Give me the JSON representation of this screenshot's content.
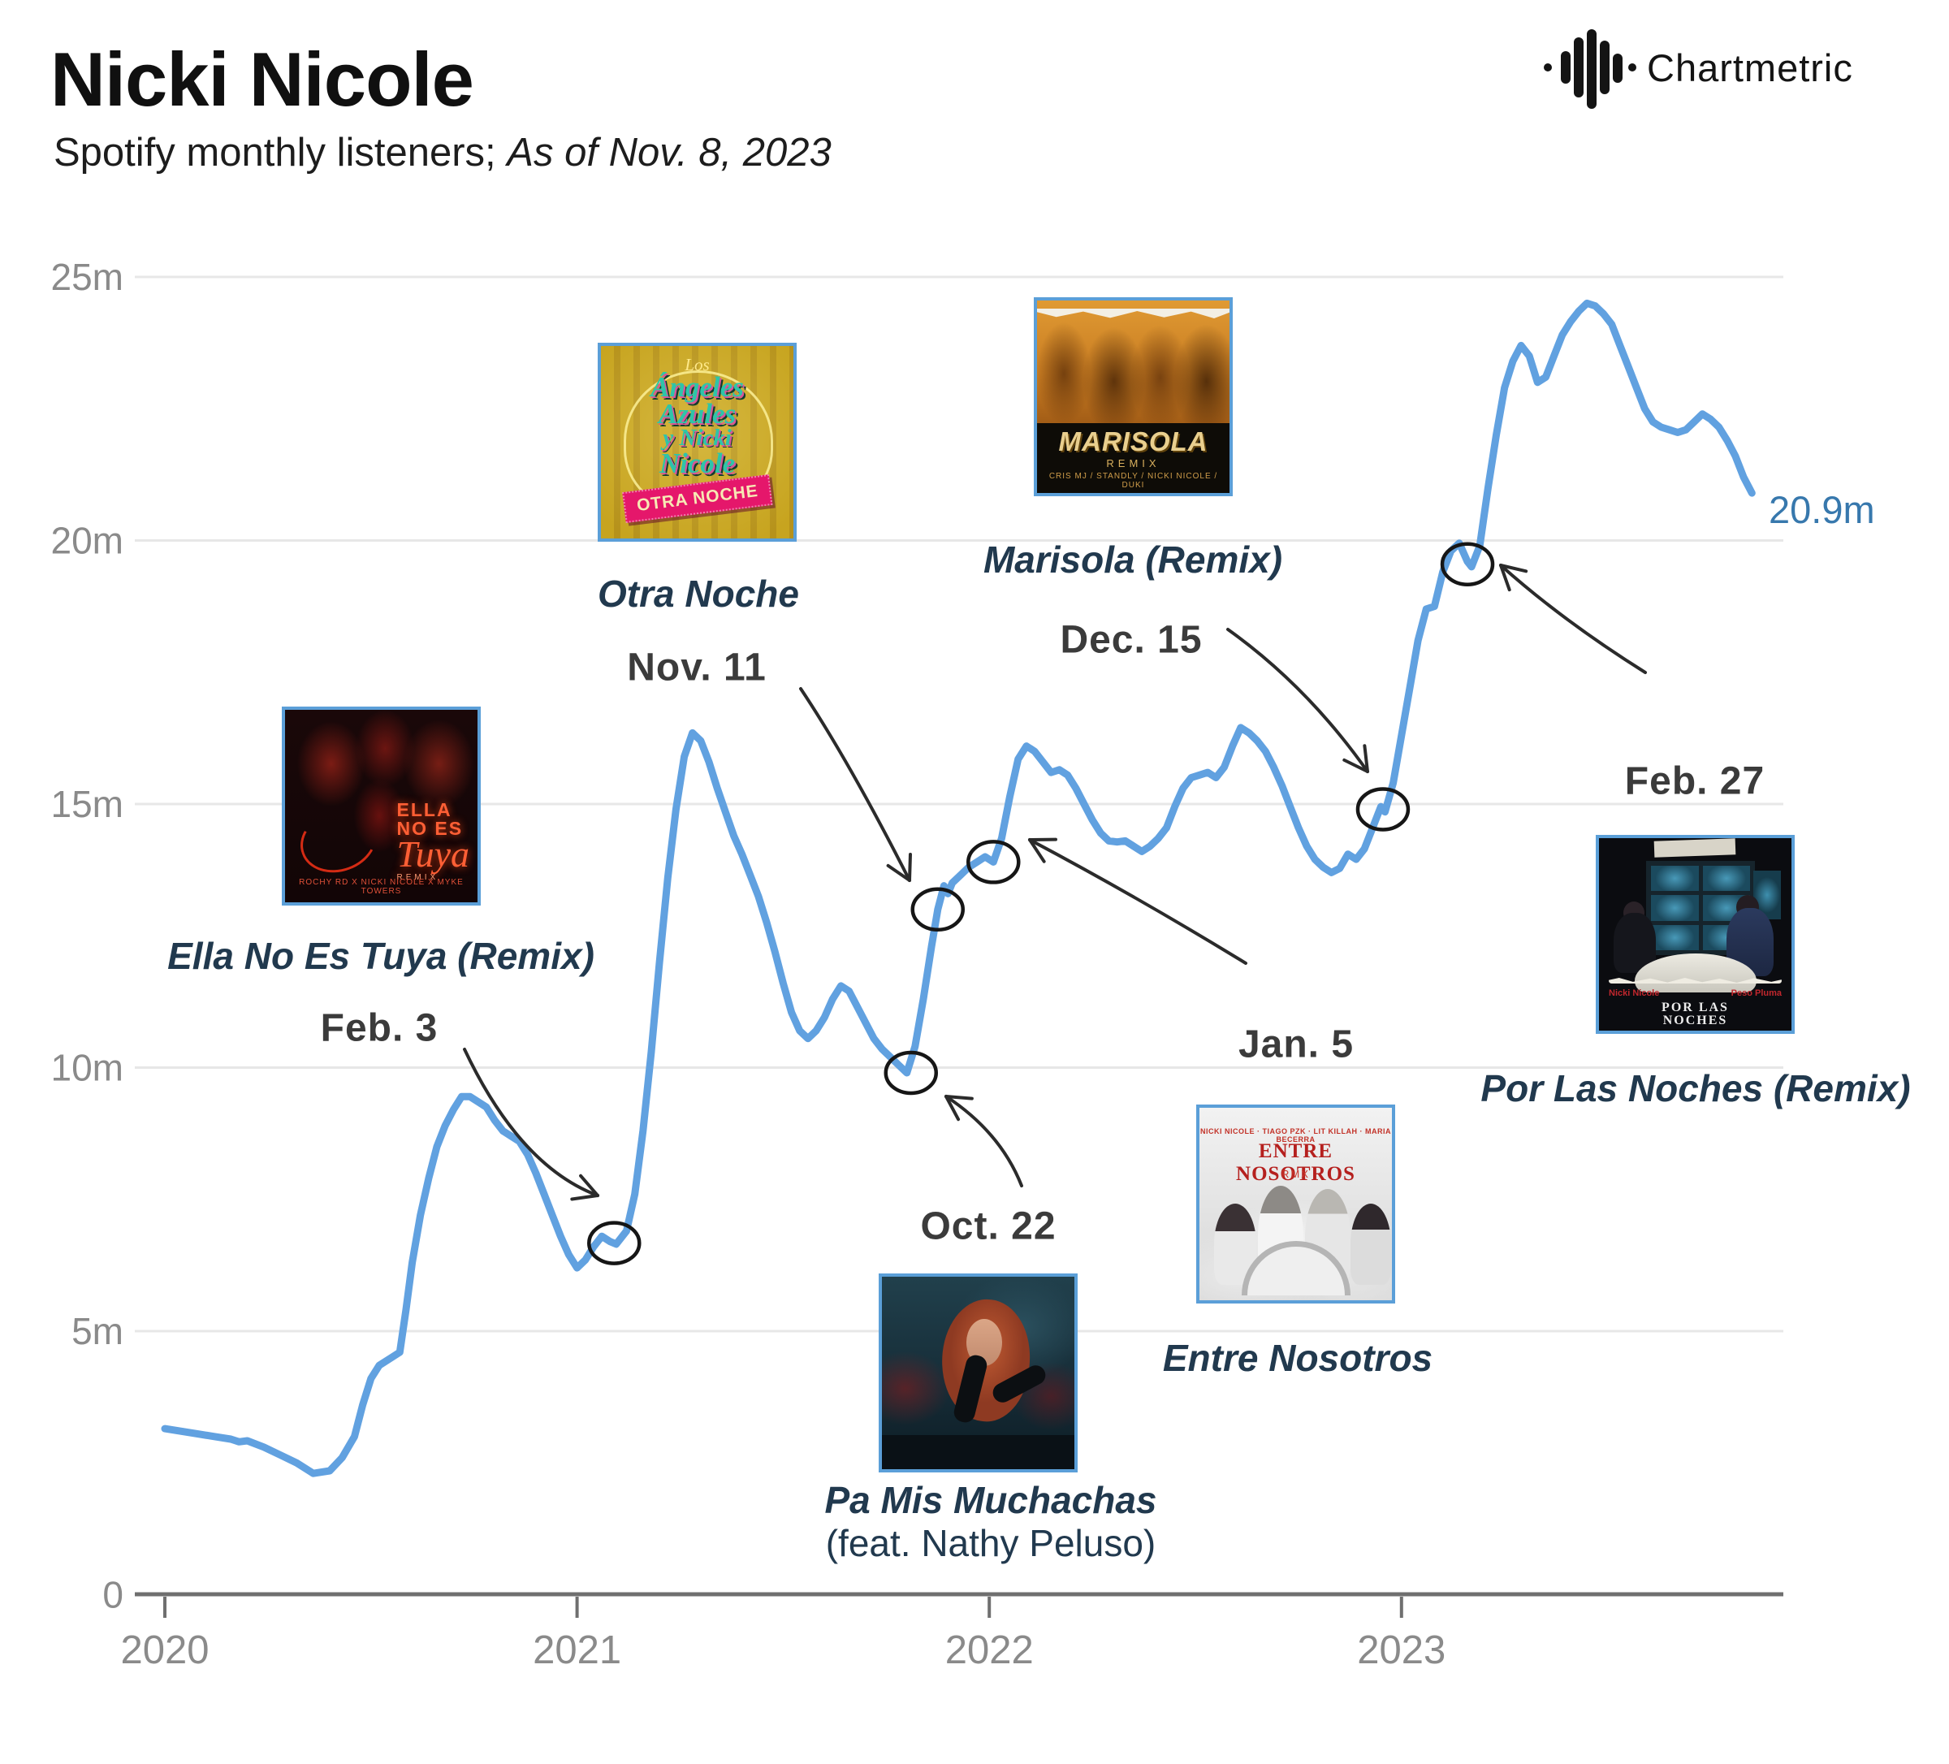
{
  "header": {
    "title": "Nicki Nicole",
    "subtitle_plain": "Spotify monthly listeners; ",
    "subtitle_italic": "As of Nov. 8, 2023"
  },
  "logo": {
    "name": "Chartmetric"
  },
  "colors": {
    "line": "#61a1e0",
    "end_label": "#3778ad",
    "song_text": "#21394e",
    "date_text": "#3b3b3b",
    "axis_text": "#8a8a8a",
    "gridline": "#e7e7e7",
    "cover_border": "#5b9fd8"
  },
  "chart_data": {
    "type": "line",
    "title": "Nicki Nicole — Spotify monthly listeners",
    "xlabel": "",
    "ylabel": "Spotify monthly listeners (millions)",
    "x_axis": {
      "range": [
        2020,
        2023.9
      ],
      "ticks": [
        {
          "label": "2020",
          "year": 2020
        },
        {
          "label": "2021",
          "year": 2021
        },
        {
          "label": "2022",
          "year": 2022
        },
        {
          "label": "2023",
          "year": 2023
        }
      ]
    },
    "y_axis": {
      "unit": "m",
      "range": [
        0,
        25
      ],
      "ticks": [
        {
          "label": "25m",
          "value": 25
        },
        {
          "label": "20m",
          "value": 20
        },
        {
          "label": "15m",
          "value": 15
        },
        {
          "label": "10m",
          "value": 10
        },
        {
          "label": "5m",
          "value": 5
        },
        {
          "label": "0",
          "value": 0
        }
      ]
    },
    "end_label": "20.9m",
    "series": [
      {
        "name": "Spotify monthly listeners (millions)",
        "color": "#61a1e0",
        "points": [
          [
            2020.0,
            3.15
          ],
          [
            2020.04,
            3.1
          ],
          [
            2020.08,
            3.05
          ],
          [
            2020.12,
            3.0
          ],
          [
            2020.16,
            2.95
          ],
          [
            2020.18,
            2.9
          ],
          [
            2020.2,
            2.92
          ],
          [
            2020.24,
            2.8
          ],
          [
            2020.28,
            2.65
          ],
          [
            2020.32,
            2.5
          ],
          [
            2020.36,
            2.3
          ],
          [
            2020.4,
            2.35
          ],
          [
            2020.43,
            2.6
          ],
          [
            2020.46,
            3.0
          ],
          [
            2020.48,
            3.6
          ],
          [
            2020.5,
            4.1
          ],
          [
            2020.52,
            4.35
          ],
          [
            2020.55,
            4.5
          ],
          [
            2020.57,
            4.6
          ],
          [
            2020.585,
            5.4
          ],
          [
            2020.6,
            6.3
          ],
          [
            2020.62,
            7.2
          ],
          [
            2020.64,
            7.9
          ],
          [
            2020.66,
            8.5
          ],
          [
            2020.68,
            8.9
          ],
          [
            2020.7,
            9.2
          ],
          [
            2020.72,
            9.45
          ],
          [
            2020.74,
            9.45
          ],
          [
            2020.76,
            9.35
          ],
          [
            2020.78,
            9.25
          ],
          [
            2020.8,
            9.0
          ],
          [
            2020.82,
            8.8
          ],
          [
            2020.84,
            8.7
          ],
          [
            2020.86,
            8.6
          ],
          [
            2020.88,
            8.35
          ],
          [
            2020.9,
            8.0
          ],
          [
            2020.92,
            7.6
          ],
          [
            2020.94,
            7.2
          ],
          [
            2020.96,
            6.8
          ],
          [
            2020.98,
            6.45
          ],
          [
            2021.0,
            6.2
          ],
          [
            2021.02,
            6.35
          ],
          [
            2021.04,
            6.6
          ],
          [
            2021.06,
            6.8
          ],
          [
            2021.08,
            6.7
          ],
          [
            2021.095,
            6.65
          ],
          [
            2021.12,
            6.9
          ],
          [
            2021.14,
            7.6
          ],
          [
            2021.16,
            8.8
          ],
          [
            2021.18,
            10.3
          ],
          [
            2021.2,
            12.0
          ],
          [
            2021.22,
            13.6
          ],
          [
            2021.24,
            14.9
          ],
          [
            2021.26,
            15.9
          ],
          [
            2021.28,
            16.35
          ],
          [
            2021.3,
            16.2
          ],
          [
            2021.32,
            15.8
          ],
          [
            2021.34,
            15.3
          ],
          [
            2021.36,
            14.85
          ],
          [
            2021.38,
            14.4
          ],
          [
            2021.4,
            14.05
          ],
          [
            2021.42,
            13.65
          ],
          [
            2021.44,
            13.25
          ],
          [
            2021.46,
            12.75
          ],
          [
            2021.48,
            12.2
          ],
          [
            2021.5,
            11.6
          ],
          [
            2021.52,
            11.05
          ],
          [
            2021.54,
            10.7
          ],
          [
            2021.56,
            10.55
          ],
          [
            2021.58,
            10.7
          ],
          [
            2021.6,
            10.95
          ],
          [
            2021.62,
            11.3
          ],
          [
            2021.64,
            11.55
          ],
          [
            2021.66,
            11.45
          ],
          [
            2021.68,
            11.15
          ],
          [
            2021.7,
            10.85
          ],
          [
            2021.72,
            10.55
          ],
          [
            2021.74,
            10.35
          ],
          [
            2021.76,
            10.2
          ],
          [
            2021.78,
            10.05
          ],
          [
            2021.8,
            9.9
          ],
          [
            2021.82,
            10.4
          ],
          [
            2021.84,
            11.3
          ],
          [
            2021.86,
            12.3
          ],
          [
            2021.875,
            13.0
          ],
          [
            2021.89,
            13.45
          ],
          [
            2021.9,
            13.3
          ],
          [
            2021.91,
            13.5
          ],
          [
            2021.93,
            13.65
          ],
          [
            2021.95,
            13.8
          ],
          [
            2021.97,
            13.9
          ],
          [
            2021.99,
            14.0
          ],
          [
            2022.01,
            13.9
          ],
          [
            2022.03,
            14.35
          ],
          [
            2022.05,
            15.15
          ],
          [
            2022.07,
            15.85
          ],
          [
            2022.09,
            16.1
          ],
          [
            2022.11,
            16.0
          ],
          [
            2022.13,
            15.8
          ],
          [
            2022.15,
            15.6
          ],
          [
            2022.17,
            15.65
          ],
          [
            2022.19,
            15.55
          ],
          [
            2022.21,
            15.3
          ],
          [
            2022.23,
            15.0
          ],
          [
            2022.25,
            14.7
          ],
          [
            2022.27,
            14.45
          ],
          [
            2022.29,
            14.3
          ],
          [
            2022.31,
            14.28
          ],
          [
            2022.33,
            14.3
          ],
          [
            2022.35,
            14.2
          ],
          [
            2022.37,
            14.1
          ],
          [
            2022.39,
            14.2
          ],
          [
            2022.41,
            14.35
          ],
          [
            2022.43,
            14.55
          ],
          [
            2022.45,
            14.95
          ],
          [
            2022.47,
            15.3
          ],
          [
            2022.49,
            15.5
          ],
          [
            2022.51,
            15.55
          ],
          [
            2022.53,
            15.6
          ],
          [
            2022.55,
            15.5
          ],
          [
            2022.57,
            15.7
          ],
          [
            2022.59,
            16.1
          ],
          [
            2022.61,
            16.45
          ],
          [
            2022.63,
            16.35
          ],
          [
            2022.65,
            16.2
          ],
          [
            2022.67,
            16.0
          ],
          [
            2022.69,
            15.7
          ],
          [
            2022.71,
            15.35
          ],
          [
            2022.73,
            14.95
          ],
          [
            2022.75,
            14.55
          ],
          [
            2022.77,
            14.2
          ],
          [
            2022.79,
            13.95
          ],
          [
            2022.81,
            13.8
          ],
          [
            2022.83,
            13.7
          ],
          [
            2022.85,
            13.78
          ],
          [
            2022.87,
            14.05
          ],
          [
            2022.89,
            13.95
          ],
          [
            2022.91,
            14.15
          ],
          [
            2022.93,
            14.55
          ],
          [
            2022.95,
            14.95
          ],
          [
            2022.96,
            14.85
          ],
          [
            2022.98,
            15.4
          ],
          [
            2023.0,
            16.3
          ],
          [
            2023.02,
            17.2
          ],
          [
            2023.04,
            18.1
          ],
          [
            2023.06,
            18.7
          ],
          [
            2023.08,
            18.75
          ],
          [
            2023.1,
            19.4
          ],
          [
            2023.12,
            19.8
          ],
          [
            2023.14,
            19.95
          ],
          [
            2023.16,
            19.6
          ],
          [
            2023.17,
            19.5
          ],
          [
            2023.19,
            19.9
          ],
          [
            2023.21,
            21.0
          ],
          [
            2023.23,
            22.0
          ],
          [
            2023.25,
            22.9
          ],
          [
            2023.27,
            23.4
          ],
          [
            2023.29,
            23.7
          ],
          [
            2023.31,
            23.5
          ],
          [
            2023.33,
            23.0
          ],
          [
            2023.35,
            23.1
          ],
          [
            2023.37,
            23.5
          ],
          [
            2023.39,
            23.9
          ],
          [
            2023.41,
            24.15
          ],
          [
            2023.43,
            24.35
          ],
          [
            2023.45,
            24.5
          ],
          [
            2023.47,
            24.45
          ],
          [
            2023.49,
            24.3
          ],
          [
            2023.51,
            24.1
          ],
          [
            2023.53,
            23.7
          ],
          [
            2023.55,
            23.3
          ],
          [
            2023.57,
            22.9
          ],
          [
            2023.59,
            22.5
          ],
          [
            2023.61,
            22.25
          ],
          [
            2023.63,
            22.15
          ],
          [
            2023.65,
            22.1
          ],
          [
            2023.67,
            22.05
          ],
          [
            2023.69,
            22.1
          ],
          [
            2023.71,
            22.25
          ],
          [
            2023.73,
            22.4
          ],
          [
            2023.75,
            22.3
          ],
          [
            2023.77,
            22.15
          ],
          [
            2023.79,
            21.9
          ],
          [
            2023.81,
            21.6
          ],
          [
            2023.83,
            21.2
          ],
          [
            2023.85,
            20.9
          ]
        ]
      }
    ]
  },
  "annotations": [
    {
      "id": "ella",
      "song": "Ella No Es Tuya (Remix)",
      "date": "Feb. 3",
      "point": {
        "year": 2021.09,
        "value": 6.67
      }
    },
    {
      "id": "otra",
      "song": "Otra Noche",
      "date": "Nov. 11",
      "point": {
        "year": 2021.875,
        "value": 13.0
      }
    },
    {
      "id": "pamis",
      "song": "Pa Mis Muchachas",
      "song2": "(feat. Nathy Peluso)",
      "date": "Oct. 22",
      "point": {
        "year": 2021.81,
        "value": 9.9
      }
    },
    {
      "id": "entre",
      "song": "Entre Nosotros",
      "date": "Jan. 5",
      "point": {
        "year": 2022.01,
        "value": 13.9
      }
    },
    {
      "id": "marisola",
      "song": "Marisola (Remix)",
      "date": "Dec. 15",
      "point": {
        "year": 2022.955,
        "value": 14.9
      }
    },
    {
      "id": "porlas",
      "song": "Por Las Noches (Remix)",
      "date": "Feb. 27",
      "point": {
        "year": 2023.16,
        "value": 19.55
      }
    }
  ],
  "covers": {
    "ella": {
      "neon1": "ELLA",
      "neon2": "NO ES",
      "neon3": "Tuya",
      "neon4": "REMIX",
      "artists": "ROCHY RD  X  NICKI NICOLE  X  MYKE TOWERS"
    },
    "otra": {
      "script1": "Los",
      "script2": "Ángeles",
      "script3": "Azules",
      "script4": "y Nicki",
      "script5": "Nicole",
      "ribbon": "OTRA NOCHE"
    },
    "marisola": {
      "title": "MARISOLA",
      "remix": "REMIX",
      "artists": "CRIS MJ / STANDLY / NICKI NICOLE / DUKI"
    },
    "entre": {
      "artists": "NICKI NICOLE · TIAGO PZK · LIT KILLAH · MARIA BECERRA",
      "title": "ENTRE NOSOTROS",
      "rmx": "RMX"
    },
    "porlas": {
      "artist_left": "Nicki Nicole",
      "artist_right": "Peso Pluma",
      "title1": "POR LAS",
      "title2": "NOCHES"
    }
  }
}
